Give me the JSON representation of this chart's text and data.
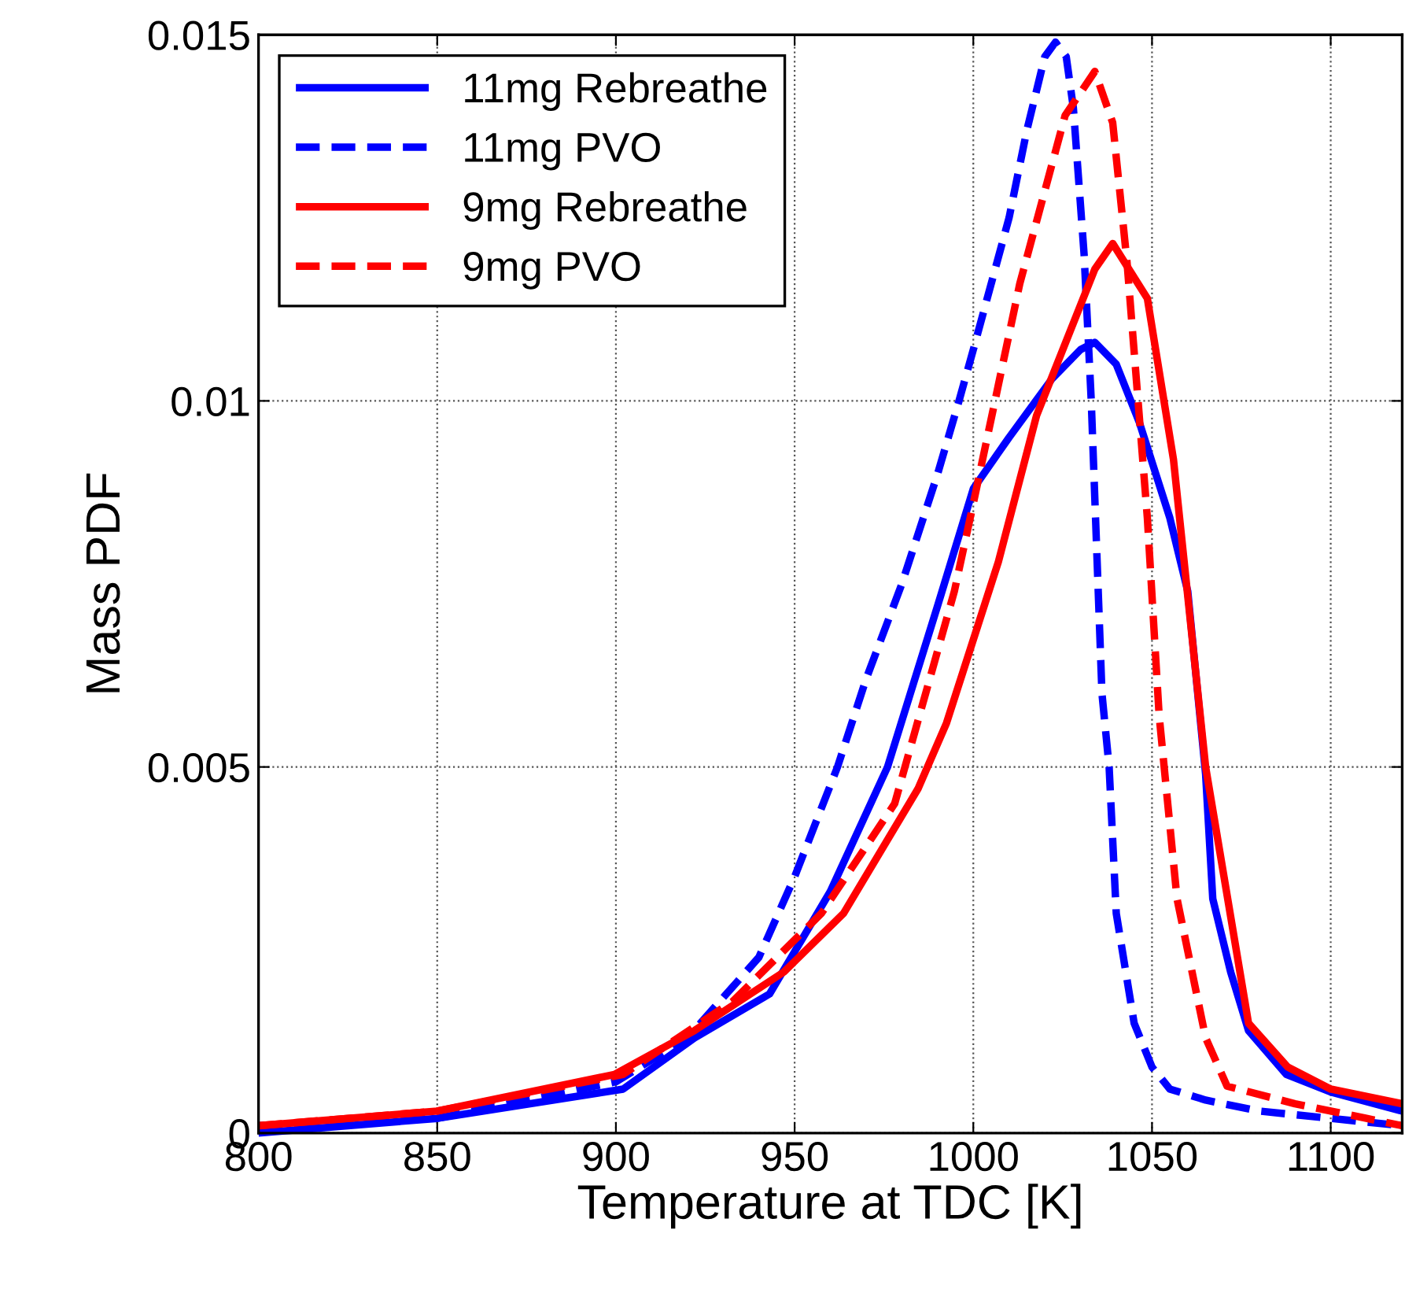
{
  "chart_data": {
    "type": "line",
    "xlabel": "Temperature at TDC [K]",
    "ylabel": "Mass PDF",
    "xlim": [
      800,
      1120
    ],
    "xticks": [
      800,
      850,
      900,
      950,
      1000,
      1050,
      1100
    ],
    "ylim": [
      0,
      0.015
    ],
    "yticks": [
      0,
      0.005,
      0.01,
      0.015
    ],
    "grid": true,
    "legend": "top left",
    "marker": "none",
    "series": [
      {
        "name": "11mg Rebreathe",
        "color": "#0000ff",
        "line_style": "solid",
        "x": [
          800,
          850,
          902,
          922,
          943,
          960,
          976,
          990,
          1000,
          1010,
          1022,
          1030,
          1034,
          1040,
          1046.5,
          1055,
          1060,
          1065,
          1067,
          1072,
          1077,
          1087.6,
          1100,
          1120
        ],
        "values": [
          0,
          0.0002,
          0.0006,
          0.0013,
          0.0019,
          0.0033,
          0.005,
          0.0072,
          0.0088,
          0.0095,
          0.0103,
          0.0107,
          0.0108,
          0.0105,
          0.0097,
          0.0084,
          0.0074,
          0.0049,
          0.0032,
          0.0022,
          0.0014,
          0.0008,
          0.00056,
          0.0003
        ]
      },
      {
        "name": "11mg PVO",
        "color": "#0000ff",
        "line_style": "dashed",
        "x": [
          800,
          850,
          900,
          920,
          940,
          950,
          962,
          970,
          980,
          990,
          996,
          1000,
          1010,
          1015,
          1020,
          1023,
          1026,
          1028,
          1031,
          1033,
          1036,
          1038,
          1040,
          1045,
          1050,
          1055,
          1065,
          1080,
          1100,
          1120
        ],
        "values": [
          0.0001,
          0.0002,
          0.0007,
          0.0013,
          0.0024,
          0.0035,
          0.005,
          0.0062,
          0.0075,
          0.009,
          0.01,
          0.0107,
          0.0125,
          0.0137,
          0.0147,
          0.0149,
          0.0147,
          0.014,
          0.012,
          0.01,
          0.006,
          0.005,
          0.003,
          0.0015,
          0.0009,
          0.0006,
          0.00045,
          0.0003,
          0.0002,
          0.0001
        ]
      },
      {
        "name": "9mg Rebreathe",
        "color": "#ff0000",
        "line_style": "solid",
        "x": [
          800,
          850,
          899.6,
          922,
          947,
          963.7,
          984.5,
          992.5,
          1007,
          1017.7,
          1034,
          1039,
          1048.7,
          1056,
          1065,
          1077,
          1088,
          1100,
          1120
        ],
        "values": [
          0.0001,
          0.0003,
          0.0008,
          0.0014,
          0.0022,
          0.003,
          0.0047,
          0.0056,
          0.0078,
          0.0098,
          0.0118,
          0.01215,
          0.0114,
          0.0092,
          0.005,
          0.0015,
          0.0009,
          0.0006,
          0.0004
        ]
      },
      {
        "name": "9mg PVO",
        "color": "#ff0000",
        "line_style": "dashed",
        "x": [
          800,
          850,
          902,
          932.7,
          957.5,
          978,
          994.7,
          1000,
          1013,
          1025.7,
          1034,
          1039,
          1043,
          1048.7,
          1052,
          1057,
          1065,
          1071,
          1090,
          1110,
          1120
        ],
        "values": [
          0.0001,
          0.0003,
          0.0008,
          0.0018,
          0.003,
          0.0045,
          0.0074,
          0.0086,
          0.0116,
          0.0139,
          0.0145,
          0.0138,
          0.0119,
          0.0084,
          0.0057,
          0.0032,
          0.0013,
          0.00064,
          0.0004,
          0.0002,
          0.0001
        ]
      }
    ]
  }
}
